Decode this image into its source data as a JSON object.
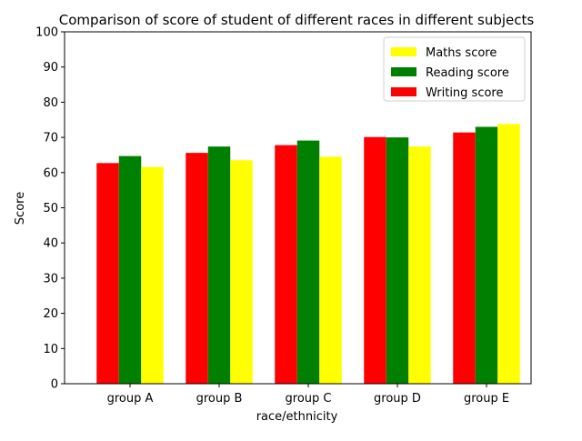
{
  "chart_data": {
    "type": "bar",
    "title": "Comparison of score of student of different races in different subjects",
    "xlabel": "race/ethnicity",
    "ylabel": "Score",
    "ylim": [
      0,
      100
    ],
    "yticks": [
      0,
      10,
      20,
      30,
      40,
      50,
      60,
      70,
      80,
      90,
      100
    ],
    "categories": [
      "group A",
      "group B",
      "group C",
      "group D",
      "group E"
    ],
    "series": [
      {
        "name": "Writing score",
        "color": "#ff0000",
        "values": [
          62.7,
          65.6,
          67.8,
          70.1,
          71.4
        ]
      },
      {
        "name": "Reading score",
        "color": "#008000",
        "values": [
          64.7,
          67.4,
          69.1,
          70.0,
          73.0
        ]
      },
      {
        "name": "Maths score",
        "color": "#ffff00",
        "values": [
          61.6,
          63.5,
          64.5,
          67.4,
          73.8
        ]
      }
    ],
    "legend": {
      "placement": "top-right",
      "order": [
        "Maths score",
        "Reading score",
        "Writing score"
      ]
    },
    "grid": false
  }
}
